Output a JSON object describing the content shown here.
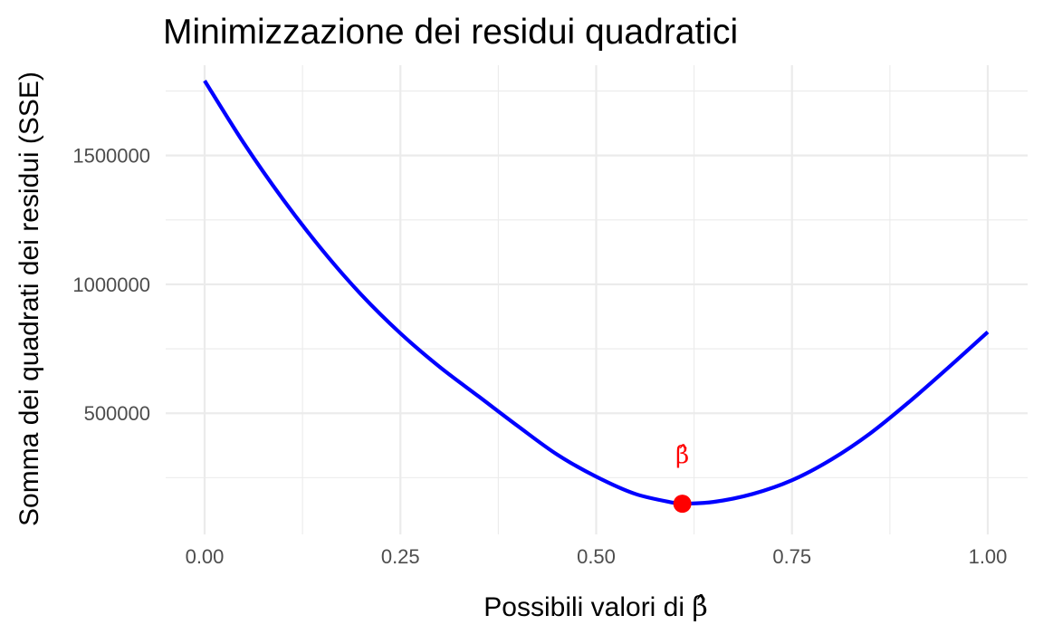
{
  "chart_data": {
    "type": "line",
    "title": "Minimizzazione dei residui quadratici",
    "xlabel": "Possibili valori di",
    "xlabel_symbol": "β̂",
    "ylabel": "Somma dei quadrati dei residui (SSE)",
    "xlim": [
      0,
      1
    ],
    "ylim": [
      30000,
      1850000
    ],
    "x_ticks": [
      0,
      0.25,
      0.5,
      0.75,
      1
    ],
    "x_tick_labels": [
      "0.00",
      "0.25",
      "0.50",
      "0.75",
      "1.00"
    ],
    "x_minor_ticks": [
      0.125,
      0.375,
      0.625,
      0.875
    ],
    "y_ticks": [
      500000,
      1000000,
      1500000
    ],
    "y_tick_labels": [
      "500000",
      "1000000",
      "1500000"
    ],
    "y_minor_ticks": [
      250000,
      750000,
      1250000,
      1750000
    ],
    "grid": true,
    "series": [
      {
        "color": "#0000ff",
        "x": [
          0,
          0.05,
          0.1,
          0.15,
          0.2,
          0.25,
          0.3,
          0.35,
          0.4,
          0.45,
          0.5,
          0.55,
          0.6,
          0.61,
          0.65,
          0.7,
          0.75,
          0.8,
          0.85,
          0.9,
          0.95,
          1
        ],
        "y": [
          1790000,
          1548000,
          1330000,
          1134000,
          960000,
          810000,
          680000,
          565000,
          450000,
          340000,
          254000,
          187000,
          152000,
          149000,
          156000,
          187000,
          240000,
          320000,
          422000,
          545000,
          678000,
          815000
        ]
      }
    ],
    "highlight": {
      "x": 0.61,
      "y": 149000,
      "color": "#ff0000",
      "label": "β̂"
    }
  }
}
